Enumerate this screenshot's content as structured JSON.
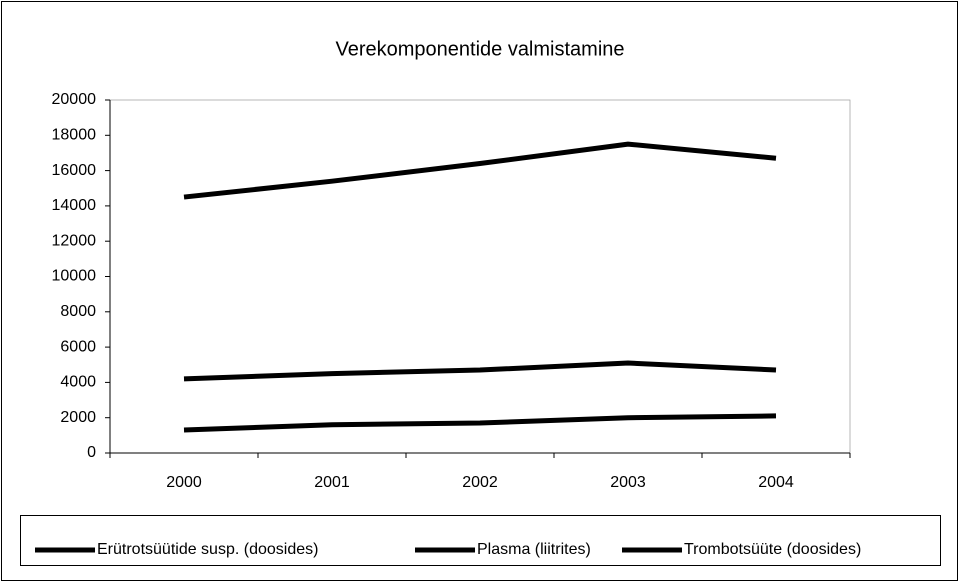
{
  "chart_data": {
    "type": "line",
    "title": "Verekomponentide valmistamine",
    "categories": [
      "2000",
      "2001",
      "2002",
      "2003",
      "2004"
    ],
    "series": [
      {
        "name": "Erütrotsüütide susp. (doosides)",
        "color": "#000000",
        "values": [
          14500,
          15400,
          16400,
          17500,
          16700
        ]
      },
      {
        "name": "Plasma (liitrites)",
        "color": "#000000",
        "values": [
          4200,
          4500,
          4700,
          5100,
          4700
        ]
      },
      {
        "name": "Trombotsüüte (doosides)",
        "color": "#000000",
        "values": [
          1300,
          1600,
          1700,
          2000,
          2100
        ]
      }
    ],
    "ylim": [
      0,
      20000
    ],
    "yticks": [
      0,
      2000,
      4000,
      6000,
      8000,
      10000,
      12000,
      14000,
      16000,
      18000,
      20000
    ],
    "grid": false,
    "legend": "bottom"
  }
}
